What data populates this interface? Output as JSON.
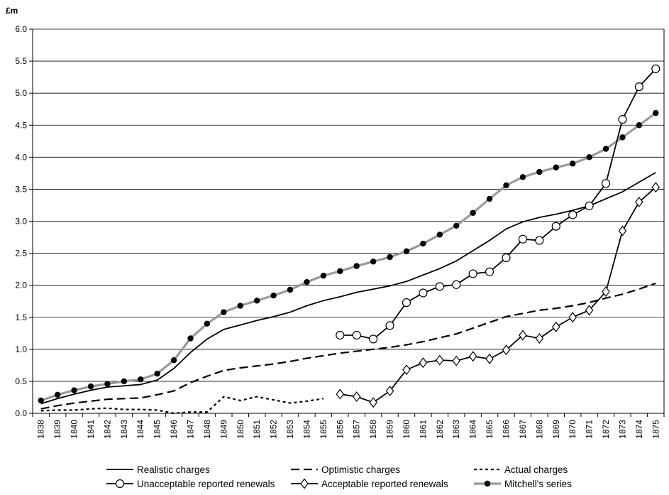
{
  "chart_data": {
    "type": "line",
    "title": "",
    "ylabel": "£m",
    "xlabel": "",
    "ylim": [
      0,
      6
    ],
    "yticks": [
      "0.0",
      "0.5",
      "1.0",
      "1.5",
      "2.0",
      "2.5",
      "3.0",
      "3.5",
      "4.0",
      "4.5",
      "5.0",
      "5.5",
      "6.0"
    ],
    "categories": [
      "1838",
      "1839",
      "1840",
      "1841",
      "1842",
      "1843",
      "1844",
      "1845",
      "1846",
      "1847",
      "1848",
      "1849",
      "1850",
      "1851",
      "1852",
      "1853",
      "1854",
      "1855",
      "1856",
      "1857",
      "1858",
      "1859",
      "1860",
      "1861",
      "1862",
      "1863",
      "1864",
      "1865",
      "1866",
      "1867",
      "1868",
      "1869",
      "1870",
      "1871",
      "1872",
      "1873",
      "1874",
      "1875"
    ],
    "grid": "horizontal",
    "legend_position": "bottom",
    "series": [
      {
        "name": "Realistic charges",
        "style": "solid",
        "color": "#000000",
        "values": [
          0.15,
          0.23,
          0.3,
          0.36,
          0.41,
          0.43,
          0.45,
          0.52,
          0.7,
          0.95,
          1.16,
          1.31,
          1.38,
          1.45,
          1.51,
          1.58,
          1.68,
          1.76,
          1.82,
          1.89,
          1.94,
          1.99,
          2.06,
          2.16,
          2.26,
          2.38,
          2.54,
          2.7,
          2.88,
          2.99,
          3.06,
          3.11,
          3.17,
          3.24,
          3.35,
          3.46,
          3.61,
          3.76
        ]
      },
      {
        "name": "Optimistic charges",
        "style": "dash",
        "color": "#000000",
        "values": [
          0.07,
          0.12,
          0.16,
          0.19,
          0.22,
          0.23,
          0.24,
          0.29,
          0.35,
          0.48,
          0.58,
          0.67,
          0.71,
          0.74,
          0.77,
          0.81,
          0.86,
          0.9,
          0.94,
          0.97,
          1.0,
          1.03,
          1.07,
          1.12,
          1.18,
          1.24,
          1.33,
          1.42,
          1.51,
          1.56,
          1.61,
          1.64,
          1.68,
          1.73,
          1.8,
          1.86,
          1.94,
          2.03
        ]
      },
      {
        "name": "Actual charges",
        "style": "dot",
        "color": "#000000",
        "values": [
          0.04,
          0.05,
          0.05,
          0.07,
          0.08,
          0.06,
          0.06,
          0.05,
          0.0,
          0.02,
          0.02,
          0.26,
          0.2,
          0.26,
          0.21,
          0.16,
          0.19,
          0.23,
          null,
          null,
          null,
          null,
          null,
          null,
          null,
          null,
          null,
          null,
          null,
          null,
          null,
          null,
          null,
          null,
          null,
          null,
          null,
          null
        ]
      },
      {
        "name": "Unacceptable reported renewals",
        "style": "solid",
        "marker": "open-circle",
        "color": "#000000",
        "values": [
          null,
          null,
          null,
          null,
          null,
          null,
          null,
          null,
          null,
          null,
          null,
          null,
          null,
          null,
          null,
          null,
          null,
          null,
          1.22,
          1.22,
          1.16,
          1.37,
          1.73,
          1.88,
          1.98,
          2.01,
          2.18,
          2.21,
          2.43,
          2.72,
          2.7,
          2.92,
          3.1,
          3.24,
          3.59,
          4.59,
          5.1,
          5.38
        ]
      },
      {
        "name": "Acceptable reported renewals",
        "style": "solid",
        "marker": "open-diamond",
        "color": "#000000",
        "values": [
          null,
          null,
          null,
          null,
          null,
          null,
          null,
          null,
          null,
          null,
          null,
          null,
          null,
          null,
          null,
          null,
          null,
          null,
          0.3,
          0.26,
          0.17,
          0.35,
          0.68,
          0.79,
          0.83,
          0.82,
          0.89,
          0.85,
          0.99,
          1.22,
          1.17,
          1.35,
          1.5,
          1.61,
          1.9,
          2.85,
          3.3,
          3.53
        ]
      },
      {
        "name": "Mitchell's series",
        "style": "gray",
        "marker": "filled-circle",
        "color": "#999999",
        "values": [
          0.2,
          0.29,
          0.36,
          0.42,
          0.46,
          0.5,
          0.53,
          0.62,
          0.83,
          1.17,
          1.4,
          1.58,
          1.68,
          1.76,
          1.84,
          1.93,
          2.05,
          2.15,
          2.22,
          2.3,
          2.37,
          2.44,
          2.53,
          2.65,
          2.79,
          2.93,
          3.13,
          3.35,
          3.56,
          3.69,
          3.77,
          3.84,
          3.9,
          4.0,
          4.13,
          4.31,
          4.5,
          4.69
        ]
      }
    ]
  }
}
